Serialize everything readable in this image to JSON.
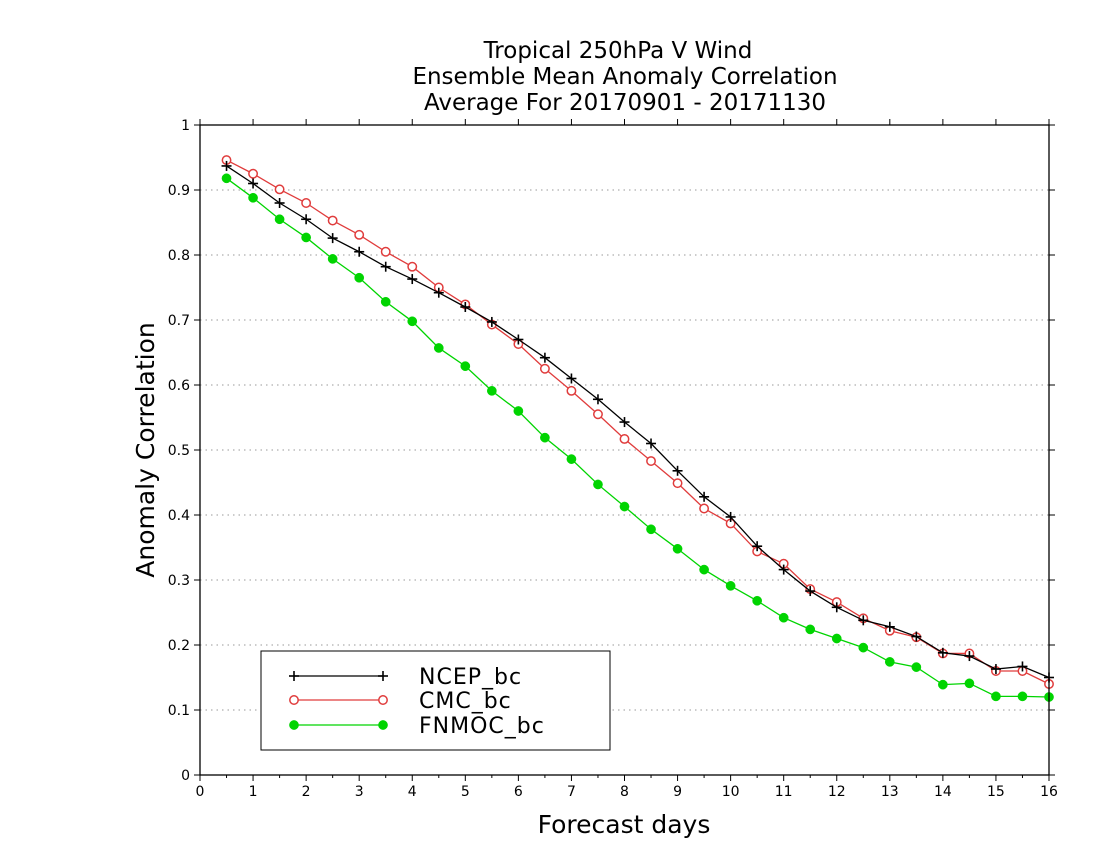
{
  "chart_data": {
    "type": "line",
    "title_lines": [
      "Tropical 250hPa V Wind",
      "Ensemble Mean Anomaly Correlation",
      "Average For 20170901 - 20171130"
    ],
    "xlabel": "Forecast days",
    "ylabel": "Anomaly Correlation",
    "xlim": [
      0,
      16
    ],
    "ylim": [
      0,
      1
    ],
    "xticks": [
      "0",
      "1",
      "2",
      "3",
      "4",
      "5",
      "6",
      "7",
      "8",
      "9",
      "10",
      "11",
      "12",
      "13",
      "14",
      "15",
      "16"
    ],
    "yticks": [
      "0",
      "0.1",
      "0.2",
      "0.3",
      "0.4",
      "0.5",
      "0.6",
      "0.7",
      "0.8",
      "0.9",
      "1"
    ],
    "grid": "horizontal dotted",
    "legend_position": "bottom-left",
    "x": [
      0.5,
      1,
      1.5,
      2,
      2.5,
      3,
      3.5,
      4,
      4.5,
      5,
      5.5,
      6,
      6.5,
      7,
      7.5,
      8,
      8.5,
      9,
      9.5,
      10,
      10.5,
      11,
      11.5,
      12,
      12.5,
      13,
      13.5,
      14,
      14.5,
      15,
      15.5,
      16
    ],
    "series": [
      {
        "name": "NCEP_bc",
        "color": "#000000",
        "marker": "plus",
        "values": [
          0.937,
          0.91,
          0.88,
          0.855,
          0.826,
          0.805,
          0.782,
          0.763,
          0.742,
          0.72,
          0.697,
          0.67,
          0.642,
          0.61,
          0.578,
          0.543,
          0.51,
          0.468,
          0.428,
          0.397,
          0.352,
          0.316,
          0.283,
          0.258,
          0.238,
          0.228,
          0.213,
          0.188,
          0.183,
          0.163,
          0.167,
          0.15
        ]
      },
      {
        "name": "CMC_bc",
        "color": "#e03c3c",
        "marker": "open-circle",
        "values": [
          0.946,
          0.925,
          0.901,
          0.88,
          0.853,
          0.831,
          0.805,
          0.782,
          0.75,
          0.724,
          0.693,
          0.663,
          0.625,
          0.591,
          0.555,
          0.517,
          0.483,
          0.449,
          0.41,
          0.387,
          0.344,
          0.325,
          0.286,
          0.266,
          0.241,
          0.222,
          0.212,
          0.187,
          0.187,
          0.16,
          0.16,
          0.14
        ]
      },
      {
        "name": "FNMOC_bc",
        "color": "#00d400",
        "marker": "filled-circle",
        "values": [
          0.918,
          0.888,
          0.855,
          0.827,
          0.794,
          0.765,
          0.728,
          0.698,
          0.657,
          0.629,
          0.591,
          0.56,
          0.519,
          0.486,
          0.447,
          0.413,
          0.378,
          0.348,
          0.316,
          0.291,
          0.268,
          0.242,
          0.224,
          0.21,
          0.196,
          0.174,
          0.166,
          0.139,
          0.141,
          0.121,
          0.121,
          0.12
        ]
      }
    ]
  }
}
